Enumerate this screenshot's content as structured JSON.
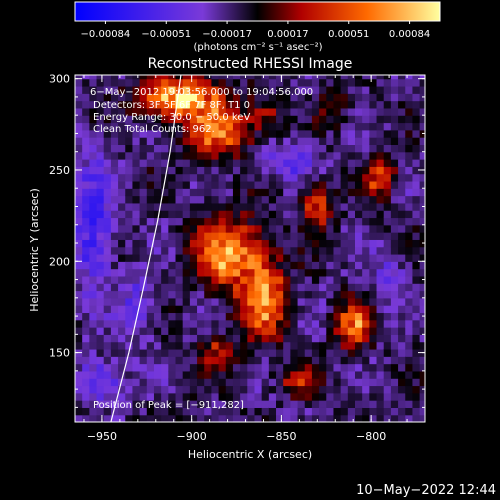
{
  "chart_data": {
    "type": "heatmap",
    "title": "Reconstructed RHESSI Image",
    "xlabel": "Heliocentric X (arcsec)",
    "ylabel": "Heliocentric Y (arcsec)",
    "xlim": [
      -965,
      -770
    ],
    "ylim": [
      112,
      302
    ],
    "xticks": [
      -950,
      -900,
      -850,
      -800
    ],
    "xtick_labels": [
      "−950",
      "−900",
      "−850",
      "−800"
    ],
    "yticks": [
      150,
      200,
      250,
      300
    ],
    "ytick_labels": [
      "150",
      "200",
      "250",
      "300"
    ],
    "colorbar": {
      "min": -0.00084,
      "max": 0.00084,
      "tick_labels": [
        "−0.00084",
        "−0.00051",
        "−0.00017",
        "0.00017",
        "0.00051",
        "0.00084"
      ],
      "unit_label": "(photons cm⁻² s⁻¹ asec⁻²)",
      "colors": [
        "#0000ff",
        "#6a2ec8",
        "#000000",
        "#a80000",
        "#ff6a00",
        "#ffff80"
      ]
    },
    "annotations": [
      "6−May−2012 19:03:56.000 to 19:04:56.000",
      "Detectors: 3F 5F 6F 7F 8F, T1 0",
      "Energy Range: 30.0 − 50.0 keV",
      "Clean    Total Counts: 962.",
      "Position of Peak = [−911,282]"
    ],
    "peak": {
      "x": -911,
      "y": 282
    },
    "limb": [
      {
        "x": -945,
        "y": 112
      },
      {
        "x": -935,
        "y": 150
      },
      {
        "x": -927,
        "y": 185
      },
      {
        "x": -919,
        "y": 222
      },
      {
        "x": -912,
        "y": 260
      },
      {
        "x": -906,
        "y": 302
      }
    ],
    "hot_regions": [
      {
        "x": -905,
        "y": 290,
        "w": 22,
        "h": 12,
        "amp": 0.00084
      },
      {
        "x": -885,
        "y": 270,
        "w": 16,
        "h": 12,
        "amp": 0.0006
      },
      {
        "x": -860,
        "y": 280,
        "w": 10,
        "h": 10,
        "amp": 0.00032
      },
      {
        "x": -820,
        "y": 285,
        "w": 9,
        "h": 9,
        "amp": 0.00024
      },
      {
        "x": -880,
        "y": 205,
        "w": 18,
        "h": 18,
        "amp": 0.00072
      },
      {
        "x": -860,
        "y": 180,
        "w": 13,
        "h": 22,
        "amp": 0.00066
      },
      {
        "x": -830,
        "y": 230,
        "w": 8,
        "h": 12,
        "amp": 0.00055
      },
      {
        "x": -810,
        "y": 165,
        "w": 9,
        "h": 12,
        "amp": 0.00066
      },
      {
        "x": -885,
        "y": 150,
        "w": 9,
        "h": 9,
        "amp": 0.0004
      },
      {
        "x": -795,
        "y": 245,
        "w": 8,
        "h": 10,
        "amp": 0.0005
      },
      {
        "x": -840,
        "y": 135,
        "w": 10,
        "h": 8,
        "amp": 0.00036
      }
    ],
    "cold_regions": [
      {
        "x": -955,
        "y": 220,
        "w": 10,
        "h": 36,
        "amp": -0.00045
      },
      {
        "x": -930,
        "y": 175,
        "w": 9,
        "h": 16,
        "amp": -0.0003
      },
      {
        "x": -848,
        "y": 255,
        "w": 16,
        "h": 9,
        "amp": -0.0003
      },
      {
        "x": -790,
        "y": 190,
        "w": 9,
        "h": 13,
        "amp": -0.00025
      },
      {
        "x": -950,
        "y": 135,
        "w": 12,
        "h": 12,
        "amp": -0.00035
      }
    ]
  },
  "footer": {
    "timestamp": "10−May−2022 12:44"
  }
}
